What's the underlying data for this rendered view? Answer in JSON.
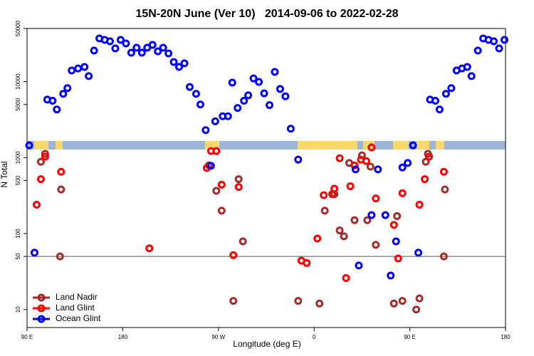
{
  "chart_data": {
    "type": "scatter",
    "title": "15N-20N June (Ver 10)   2014-09-06 to 2022-02-28",
    "x_label": "Longitude (deg E)",
    "y_label": "N Total",
    "xlim": [
      90,
      540
    ],
    "ylim": [
      5.8,
      50000
    ],
    "log_y": true,
    "legend_corner": "bottomleft",
    "xticks": [
      {
        "value": 90,
        "label": "90 E"
      },
      180,
      {
        "value": 270,
        "label": "90 W"
      },
      {
        "value": 360,
        "label": "0"
      },
      {
        "value": 450,
        "label": "90 E"
      },
      {
        "value": 540,
        "label": "180"
      }
    ],
    "yticks": [
      10,
      50,
      100,
      500,
      1000,
      5000,
      10000,
      50000
    ],
    "hline": 50,
    "series": [
      {
        "name": "Land Nadir",
        "color": "#a52a2a",
        "x": [
          103,
          107,
          121,
          122,
          261,
          268,
          273,
          284,
          289,
          293,
          345,
          365,
          370,
          379,
          384,
          388,
          393,
          398,
          405,
          410,
          413,
          418,
          435,
          438,
          443,
          456,
          459,
          465,
          467,
          482,
          483
        ],
        "values": [
          880,
          1120,
          50,
          380,
          790,
          365,
          200,
          13,
          520,
          79,
          13,
          12,
          200,
          330,
          110,
          92,
          850,
          150,
          1070,
          150,
          760,
          71,
          12,
          170,
          13,
          10,
          14,
          880,
          1120,
          50,
          380
        ]
      },
      {
        "name": "Land Glint",
        "color": "#ff0000",
        "x": [
          99,
          103,
          107,
          122,
          205,
          259,
          263,
          268,
          273,
          284,
          289,
          348,
          353,
          363,
          369,
          377,
          379,
          384,
          390,
          394,
          398,
          404,
          409,
          414,
          418,
          435,
          439,
          443,
          459,
          464,
          468,
          482
        ],
        "values": [
          240,
          520,
          1030,
          650,
          64,
          730,
          1220,
          1220,
          440,
          52,
          410,
          44,
          41,
          86,
          320,
          330,
          390,
          980,
          26,
          420,
          790,
          940,
          900,
          1360,
          290,
          130,
          47,
          340,
          240,
          520,
          1030,
          650
        ]
      },
      {
        "name": "Ocean Glint",
        "color": "#0000ff",
        "x": [
          92,
          97,
          109,
          114,
          118,
          124,
          128,
          132,
          138,
          144,
          148,
          153,
          158,
          163,
          168,
          173,
          178,
          183,
          188,
          193,
          198,
          203,
          208,
          213,
          218,
          223,
          228,
          233,
          238,
          243,
          249,
          253,
          258,
          263,
          267,
          274,
          279,
          283,
          288,
          294,
          298,
          303,
          308,
          313,
          318,
          323,
          328,
          333,
          338,
          345,
          399,
          402,
          414,
          420,
          427,
          432,
          437,
          443,
          448,
          453,
          458,
          469,
          474,
          478,
          484,
          489,
          494,
          499,
          504,
          508,
          514,
          519,
          524,
          529,
          534,
          539
        ],
        "values": [
          1450,
          56,
          5800,
          5600,
          4300,
          6900,
          8200,
          14000,
          14900,
          15600,
          11800,
          25600,
          37000,
          35400,
          33900,
          27300,
          35400,
          31800,
          24000,
          27900,
          24000,
          27900,
          30400,
          25000,
          27900,
          23500,
          18100,
          15600,
          17400,
          8500,
          6900,
          5000,
          2300,
          780,
          3000,
          3500,
          3500,
          9700,
          4500,
          5600,
          6600,
          11000,
          9900,
          7000,
          4900,
          13400,
          8000,
          6400,
          2400,
          940,
          700,
          38,
          175,
          700,
          175,
          28,
          79,
          740,
          850,
          1450,
          56,
          5800,
          5600,
          4300,
          6900,
          8200,
          14000,
          14900,
          15600,
          11800,
          25600,
          37000,
          35400,
          33900,
          27300,
          35400
        ]
      }
    ]
  }
}
